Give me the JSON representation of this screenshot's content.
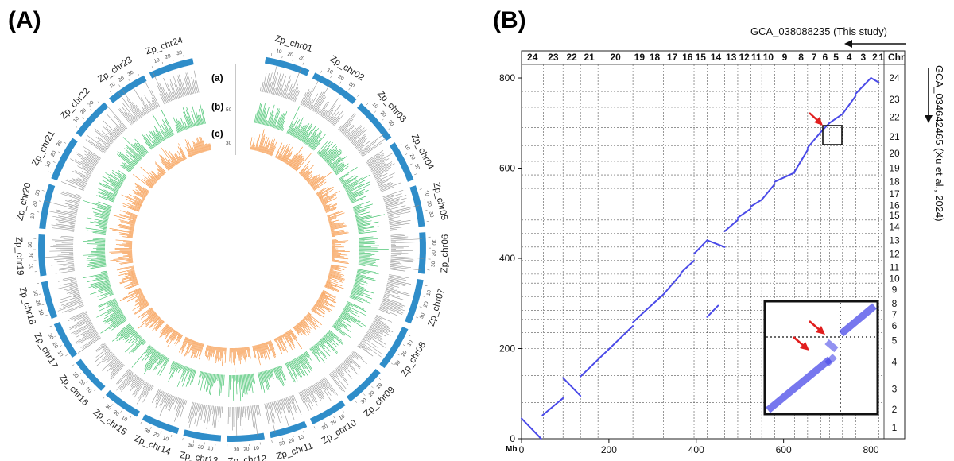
{
  "panels": {
    "a": "(A)",
    "b": "(B)"
  },
  "circos": {
    "chromosomes": [
      "Zp_chr01",
      "Zp_chr02",
      "Zp_chr03",
      "Zp_chr04",
      "Zp_chr05",
      "Zp_chr06",
      "Zp_chr07",
      "Zp_chr08",
      "Zp_chr09",
      "Zp_chr10",
      "Zp_chr11",
      "Zp_chr12",
      "Zp_chr13",
      "Zp_chr14",
      "Zp_chr15",
      "Zp_chr16",
      "Zp_chr17",
      "Zp_chr18",
      "Zp_chr19",
      "Zp_chr20",
      "Zp_chr21",
      "Zp_chr22",
      "Zp_chr23",
      "Zp_chr24"
    ],
    "track_labels": [
      "(a)",
      "(b)",
      "(c)"
    ],
    "track_colors": {
      "ideogram": "#2f8dc9",
      "a": "#8c8c8c",
      "b": "#2dbb5c",
      "c": "#f5892e"
    },
    "scale_ticks": [
      "50",
      "30"
    ]
  },
  "dotplot": {
    "x_title": "GCA_038088235 (This study)",
    "y_title": "GCA_034642465 (Xu et al., 2024)",
    "corner_label": "Chr",
    "x_unit": "Mb",
    "x_ticks": [
      "0",
      "200",
      "400",
      "600",
      "800"
    ],
    "y_ticks": [
      "0",
      "200",
      "400",
      "600",
      "800"
    ],
    "top_chr_labels": [
      "24",
      "23",
      "22",
      "21",
      "20",
      "19",
      "18",
      "17",
      "16",
      "15",
      "14",
      "13",
      "12",
      "11",
      "10",
      "9",
      "8",
      "7",
      "6",
      "5",
      "4",
      "3",
      "2",
      "1"
    ],
    "right_chr_labels": [
      "24",
      "23",
      "22",
      "21",
      "20",
      "19",
      "18",
      "17",
      "16",
      "15",
      "14",
      "13",
      "12",
      "11",
      "10",
      "9",
      "8",
      "7",
      "6",
      "5",
      "4",
      "3",
      "2",
      "1"
    ],
    "dot_color": "#4a4ae8",
    "arrow_color": "#e11e1e"
  }
}
